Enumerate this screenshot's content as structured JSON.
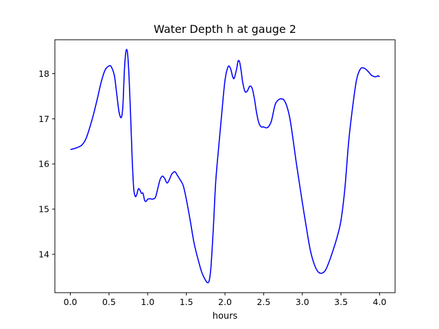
{
  "chart_data": {
    "type": "line",
    "title": "Water Depth h at gauge 2",
    "xlabel": "hours",
    "ylabel": "",
    "xlim": [
      -0.2,
      4.2
    ],
    "ylim": [
      13.15,
      18.75
    ],
    "xticks": [
      0.0,
      0.5,
      1.0,
      1.5,
      2.0,
      2.5,
      3.0,
      3.5,
      4.0
    ],
    "xtick_labels": [
      "0.0",
      "0.5",
      "1.0",
      "1.5",
      "2.0",
      "2.5",
      "3.0",
      "3.5",
      "4.0"
    ],
    "yticks": [
      14,
      15,
      16,
      17,
      18
    ],
    "ytick_labels": [
      "14",
      "15",
      "16",
      "17",
      "18"
    ],
    "grid": false,
    "line_color": "#0000ff",
    "series": [
      {
        "x": [
          0.0,
          0.05,
          0.1,
          0.15,
          0.2,
          0.25,
          0.3,
          0.35,
          0.4,
          0.45,
          0.5,
          0.53,
          0.57,
          0.6,
          0.63,
          0.66,
          0.68,
          0.7,
          0.72,
          0.74,
          0.76,
          0.78,
          0.8,
          0.82,
          0.84,
          0.86,
          0.88,
          0.9,
          0.92,
          0.94,
          0.96,
          0.98,
          1.0,
          1.03,
          1.06,
          1.1,
          1.13,
          1.16,
          1.19,
          1.22,
          1.25,
          1.28,
          1.31,
          1.35,
          1.38,
          1.42,
          1.46,
          1.5,
          1.55,
          1.6,
          1.65,
          1.7,
          1.75,
          1.78,
          1.8,
          1.82,
          1.85,
          1.88,
          1.92,
          1.96,
          2.0,
          2.04,
          2.07,
          2.1,
          2.12,
          2.15,
          2.17,
          2.19,
          2.21,
          2.23,
          2.26,
          2.29,
          2.32,
          2.35,
          2.38,
          2.41,
          2.44,
          2.47,
          2.5,
          2.53,
          2.56,
          2.6,
          2.65,
          2.7,
          2.73,
          2.76,
          2.8,
          2.84,
          2.88,
          2.92,
          2.96,
          3.0,
          3.05,
          3.1,
          3.15,
          3.2,
          3.25,
          3.3,
          3.35,
          3.4,
          3.45,
          3.5,
          3.55,
          3.6,
          3.65,
          3.7,
          3.75,
          3.8,
          3.85,
          3.89,
          3.92,
          3.95,
          3.98,
          4.0
        ],
        "y": [
          16.32,
          16.34,
          16.37,
          16.42,
          16.55,
          16.8,
          17.1,
          17.45,
          17.82,
          18.08,
          18.17,
          18.15,
          17.95,
          17.55,
          17.15,
          17.03,
          17.3,
          18.1,
          18.5,
          18.45,
          17.9,
          17.05,
          16.1,
          15.45,
          15.28,
          15.33,
          15.45,
          15.42,
          15.35,
          15.35,
          15.2,
          15.17,
          15.22,
          15.23,
          15.22,
          15.26,
          15.45,
          15.65,
          15.73,
          15.68,
          15.58,
          15.65,
          15.77,
          15.83,
          15.76,
          15.65,
          15.52,
          15.22,
          14.75,
          14.25,
          13.9,
          13.6,
          13.42,
          13.37,
          13.45,
          13.75,
          14.6,
          15.6,
          16.4,
          17.15,
          17.85,
          18.15,
          18.12,
          17.93,
          17.9,
          18.1,
          18.28,
          18.25,
          18.05,
          17.8,
          17.6,
          17.62,
          17.72,
          17.68,
          17.45,
          17.12,
          16.9,
          16.82,
          16.82,
          16.8,
          16.82,
          16.95,
          17.32,
          17.43,
          17.44,
          17.42,
          17.28,
          17.0,
          16.55,
          16.05,
          15.6,
          15.15,
          14.62,
          14.12,
          13.8,
          13.62,
          13.58,
          13.65,
          13.85,
          14.1,
          14.38,
          14.75,
          15.45,
          16.5,
          17.25,
          17.85,
          18.1,
          18.12,
          18.05,
          17.97,
          17.94,
          17.93,
          17.95,
          17.93
        ]
      }
    ]
  }
}
